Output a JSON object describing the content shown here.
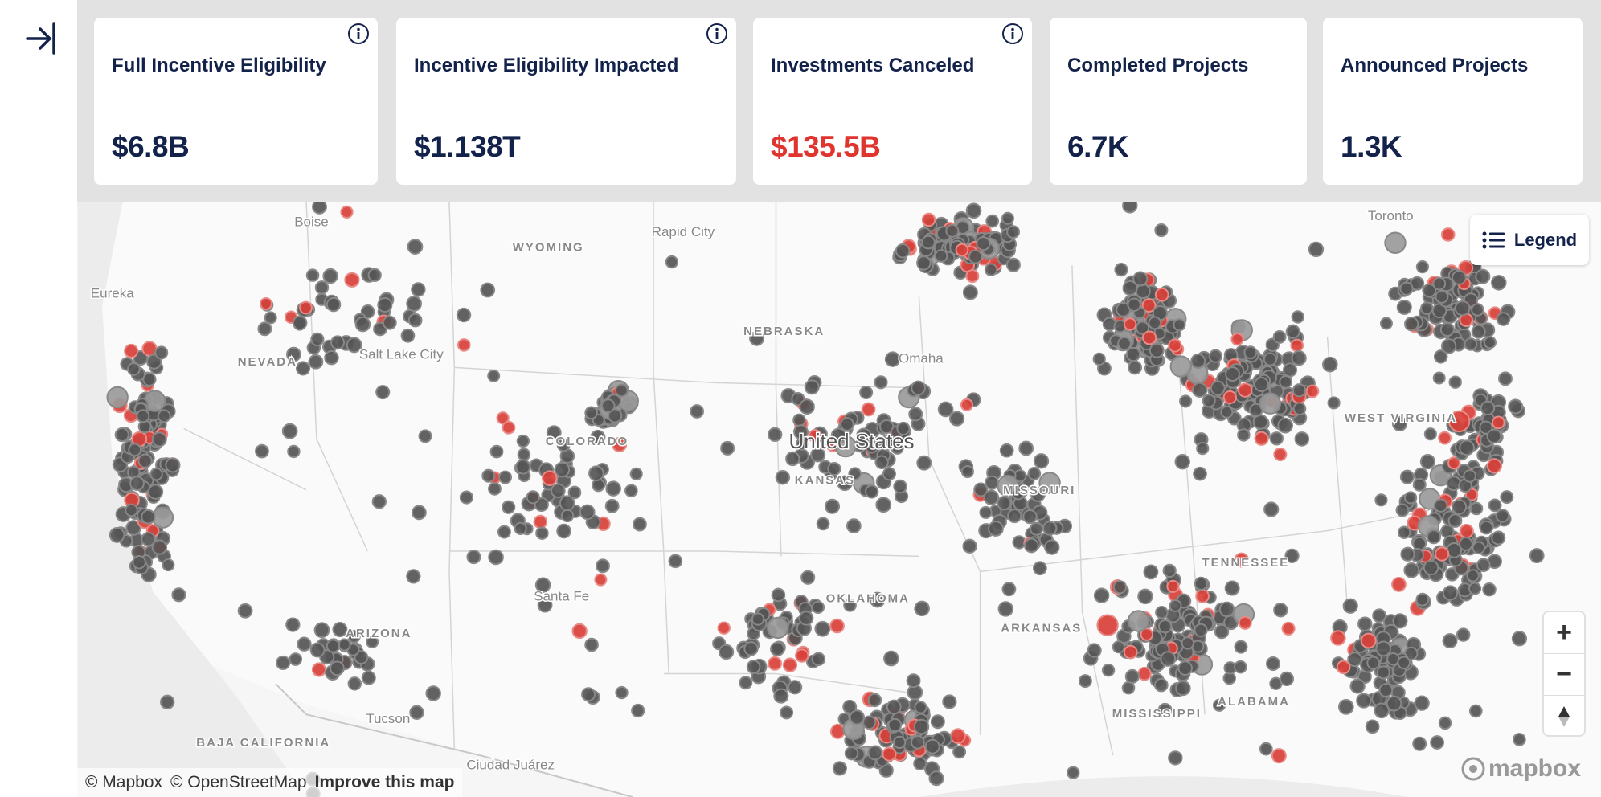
{
  "cards": [
    {
      "title": "Full Incentive Eligibility",
      "value": "$6.8B",
      "info": true,
      "value_color": "#13224a"
    },
    {
      "title": "Incentive Eligibility Impacted",
      "value": "$1.138T",
      "info": true,
      "value_color": "#13224a"
    },
    {
      "title": "Investments Canceled",
      "value": "$135.5B",
      "info": true,
      "value_color": "#e0342f"
    },
    {
      "title": "Completed Projects",
      "value": "6.7K",
      "info": false,
      "value_color": "#13224a"
    },
    {
      "title": "Announced Projects",
      "value": "1.3K",
      "info": false,
      "value_color": "#13224a"
    }
  ],
  "map": {
    "labels": [
      "WYOMING",
      "Rapid City",
      "NEBRASKA",
      "United States",
      "KANSAS",
      "COLORADO",
      "NEVADA",
      "Salt Lake City",
      "ARIZONA",
      "Santa Fe",
      "OKLAHOMA",
      "MISSOURI",
      "ARKANSAS",
      "TENNESSEE",
      "MISSISSIPPI",
      "ALABAMA",
      "WEST VIRGINIA",
      "Toronto",
      "Eureka",
      "BAJA CALIFORNIA",
      "Ciudad Juárez",
      "Omaha",
      "Boise",
      "Tucson"
    ],
    "legend_button": "Legend",
    "zoom_in": "+",
    "zoom_out": "−",
    "attribution": [
      "© Mapbox",
      "© OpenStreetMap",
      "Improve this map"
    ],
    "logo": "mapbox"
  }
}
